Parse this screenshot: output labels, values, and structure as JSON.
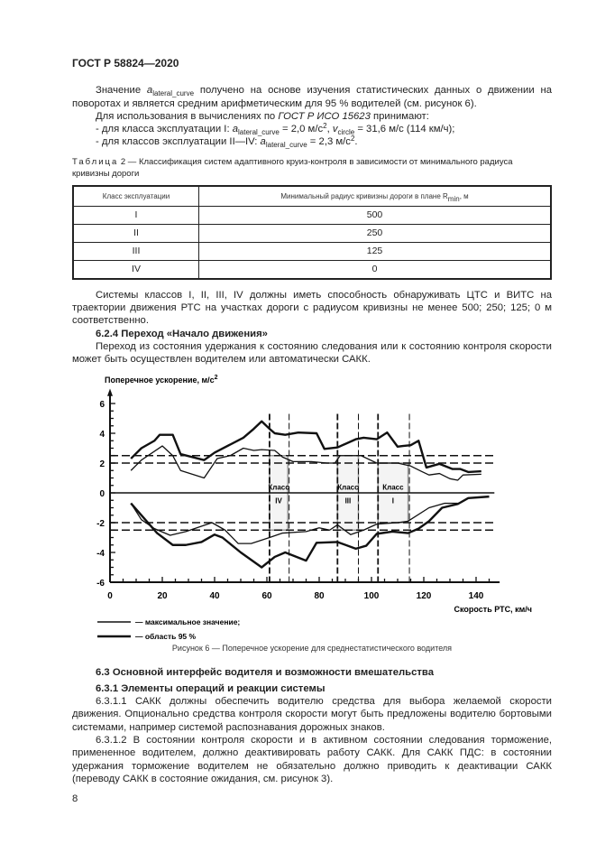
{
  "header": "ГОСТ Р 58824—2020",
  "para1": {
    "a": "Значение ",
    "sym": "a",
    "sub": "lateral_curve",
    "b": " получено на основе изучения статистических данных о движении на поворотах и является средним арифметическим для 95 % водителей (см. рисунок 6)."
  },
  "para2": {
    "a": "Для использования в вычислениях по ",
    "ref": "ГОСТ Р ИСО 15623",
    "b": " принимают:"
  },
  "bullet1": {
    "a": "- для класса эксплуатации I: ",
    "sym": "a",
    "sub": "lateral_curve",
    "b": " = 2,0 м/с",
    "sup": "2",
    "c": ", ",
    "sym2": "v",
    "sub2": "circle",
    "d": " = 31,6 м/с (114 км/ч);"
  },
  "bullet2": {
    "a": "- для классов эксплуатации II—IV: ",
    "sym": "a",
    "sub": "lateral_curve",
    "b": " = 2,3 м/с",
    "sup": "2",
    "c": "."
  },
  "table": {
    "caption_prefix": "Таблица",
    "caption": " 2 — Классификация систем адаптивного круиз-контроля в зависимости от минимального радиуса кривизны дороги",
    "headers": [
      "Класс эксплуатации",
      "Минимальный радиус кривизны дороги в плане R",
      "min",
      ", м"
    ],
    "rows": [
      [
        "I",
        "500"
      ],
      [
        "II",
        "250"
      ],
      [
        "III",
        "125"
      ],
      [
        "IV",
        "0"
      ]
    ]
  },
  "para3": "Системы классов I, II, III, IV должны иметь способность обнаруживать ЦТС и ВИТС на траектории движения РТС на участках дороги с радиусом кривизны не менее 500; 250; 125; 0 м соответственно.",
  "heading624": "6.2.4 Переход «Начало движения»",
  "para4": "Переход из состояния удержания к состоянию следования или к состоянию контроля скорости может быть осуществлен водителем или автоматически САКК.",
  "chart_data": {
    "type": "line",
    "ylabel": "Поперечное ускорение, м/с",
    "ylabel_sup": "2",
    "xlabel": "Скорость РТС, км/ч",
    "xlim": [
      0,
      145
    ],
    "ylim": [
      -6,
      6
    ],
    "xticks": [
      0,
      20,
      40,
      60,
      80,
      100,
      120,
      140
    ],
    "yticks": [
      6,
      4,
      2,
      0,
      -2,
      -4,
      -6
    ],
    "reference_lines": {
      "horizontal_dashed": [
        2.5,
        2,
        -2,
        -2.5
      ],
      "horizontal_solid": [
        0
      ],
      "vertical_dashed": [
        61,
        68.5,
        87,
        95,
        102.5,
        114.5
      ]
    },
    "class_regions": [
      {
        "label": "Класс",
        "num": "IV",
        "x": [
          61,
          68
        ],
        "y": [
          -2.5,
          2.5
        ]
      },
      {
        "label": "Класс",
        "num": "III",
        "x": [
          87,
          95
        ],
        "y": [
          -2.5,
          2.5
        ]
      },
      {
        "label": "Класс",
        "num": "I",
        "x": [
          102.5,
          114
        ],
        "y": [
          -2,
          2
        ]
      }
    ],
    "series": [
      {
        "style": "thick",
        "points": [
          [
            8,
            2.3
          ],
          [
            12,
            3.0
          ],
          [
            17,
            3.5
          ],
          [
            19,
            3.9
          ],
          [
            24,
            3.9
          ],
          [
            27,
            2.6
          ],
          [
            36,
            2.2
          ],
          [
            40,
            2.7
          ],
          [
            51,
            3.7
          ],
          [
            55,
            4.3
          ],
          [
            58,
            4.8
          ],
          [
            61,
            4.3
          ],
          [
            63,
            4.0
          ],
          [
            67,
            3.9
          ],
          [
            72,
            4.05
          ],
          [
            79,
            4.0
          ],
          [
            82,
            2.95
          ],
          [
            87,
            3.05
          ],
          [
            94,
            3.6
          ],
          [
            97,
            3.7
          ],
          [
            102,
            3.6
          ],
          [
            106,
            4.05
          ],
          [
            110,
            3.1
          ],
          [
            112,
            3.15
          ],
          [
            115,
            3.2
          ],
          [
            118,
            3.5
          ],
          [
            121,
            1.7
          ],
          [
            126,
            1.95
          ],
          [
            131,
            1.6
          ],
          [
            134,
            1.6
          ],
          [
            137,
            1.4
          ],
          [
            142,
            1.45
          ]
        ]
      },
      {
        "style": "thin",
        "points": [
          [
            8,
            1.5
          ],
          [
            12,
            2.2
          ],
          [
            20,
            3.15
          ],
          [
            24,
            2.5
          ],
          [
            27,
            1.5
          ],
          [
            36,
            1.0
          ],
          [
            41,
            2.3
          ],
          [
            46,
            2.5
          ],
          [
            51,
            3.0
          ],
          [
            55,
            2.85
          ],
          [
            58,
            2.9
          ],
          [
            63,
            2.85
          ],
          [
            66,
            2.4
          ],
          [
            70,
            2.1
          ],
          [
            77,
            2.1
          ],
          [
            83,
            2.0
          ],
          [
            86,
            2.0
          ],
          [
            88,
            2.5
          ],
          [
            96,
            2.5
          ],
          [
            102,
            2.0
          ],
          [
            110,
            2.0
          ],
          [
            115,
            1.8
          ],
          [
            119,
            1.45
          ],
          [
            122,
            1.2
          ],
          [
            126,
            1.3
          ],
          [
            130,
            0.95
          ],
          [
            133,
            0.85
          ],
          [
            135,
            1.2
          ],
          [
            142,
            1.25
          ]
        ]
      },
      {
        "style": "thin",
        "points": [
          [
            8,
            -0.7
          ],
          [
            12,
            -1.8
          ],
          [
            17,
            -2.4
          ],
          [
            23,
            -2.85
          ],
          [
            29,
            -2.6
          ],
          [
            39,
            -2.0
          ],
          [
            44,
            -2.5
          ],
          [
            49,
            -3.4
          ],
          [
            54,
            -3.4
          ],
          [
            61,
            -3.0
          ],
          [
            66,
            -2.7
          ],
          [
            75,
            -2.6
          ],
          [
            80,
            -2.35
          ],
          [
            84,
            -2.5
          ],
          [
            87,
            -2.15
          ],
          [
            92,
            -2.8
          ],
          [
            97,
            -2.5
          ],
          [
            102,
            -2.1
          ],
          [
            110,
            -2.0
          ],
          [
            114,
            -1.9
          ],
          [
            122,
            -1.0
          ],
          [
            128,
            -0.7
          ],
          [
            133,
            -0.7
          ]
        ]
      },
      {
        "style": "thick",
        "points": [
          [
            8,
            -0.7
          ],
          [
            18,
            -2.7
          ],
          [
            24,
            -3.5
          ],
          [
            29,
            -3.5
          ],
          [
            35,
            -3.3
          ],
          [
            40,
            -2.8
          ],
          [
            43,
            -3.0
          ],
          [
            50,
            -4.0
          ],
          [
            58,
            -5.0
          ],
          [
            63,
            -4.3
          ],
          [
            67,
            -4.0
          ],
          [
            75,
            -4.55
          ],
          [
            79,
            -3.35
          ],
          [
            87,
            -3.3
          ],
          [
            94,
            -3.75
          ],
          [
            98,
            -3.55
          ],
          [
            102,
            -2.75
          ],
          [
            108,
            -2.6
          ],
          [
            114,
            -2.7
          ],
          [
            118,
            -2.4
          ],
          [
            122,
            -1.9
          ],
          [
            127,
            -1.0
          ],
          [
            133,
            -0.75
          ],
          [
            137,
            -0.35
          ],
          [
            145,
            -0.25
          ]
        ]
      }
    ],
    "legend": [
      {
        "style": "thin",
        "label": "— максимальное значение;"
      },
      {
        "style": "thick",
        "label": "— область 95 %"
      }
    ]
  },
  "figure_caption": "Рисунок 6 — Поперечное ускорение для среднестатистического водителя",
  "heading63": "6.3 Основной интерфейс водителя и возможности вмешательства",
  "heading631": "6.3.1 Элементы операций и реакции системы",
  "para6311": "6.3.1.1 САКК должны обеспечить водителю средства для выбора желаемой скорости движения. Опционально средства контроля скорости могут быть предложены водителю бортовыми системами, например системой распознавания дорожных знаков.",
  "para6312": "6.3.1.2 В состоянии контроля скорости и в активном состоянии следования торможение, примененное водителем, должно деактивировать работу САКК. Для САКК ПДС: в состоянии удержания торможение водителем не обязательно должно приводить к деактивации САКК (переводу САКК в состояние ожидания, см. рисунок 3).",
  "page_number": "8"
}
